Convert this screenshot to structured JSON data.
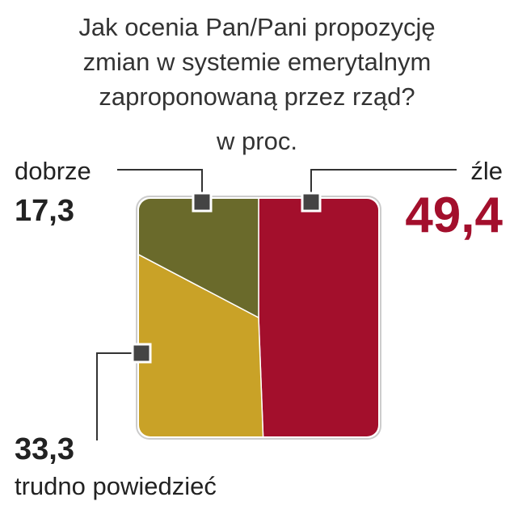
{
  "chart_data": {
    "type": "pie",
    "title": "Jak ocenia Pan/Pani propozycję zmian w systemie emerytalnym zaproponowaną przez rząd?",
    "subtitle": "w proc.",
    "categories": [
      "źle",
      "trudno powiedzieć",
      "dobrze"
    ],
    "values": [
      49.4,
      33.3,
      17.3
    ],
    "value_labels": [
      "49,4",
      "33,3",
      "17,3"
    ],
    "colors": [
      "#a30f2c",
      "#c9a227",
      "#6a6a2b"
    ]
  }
}
